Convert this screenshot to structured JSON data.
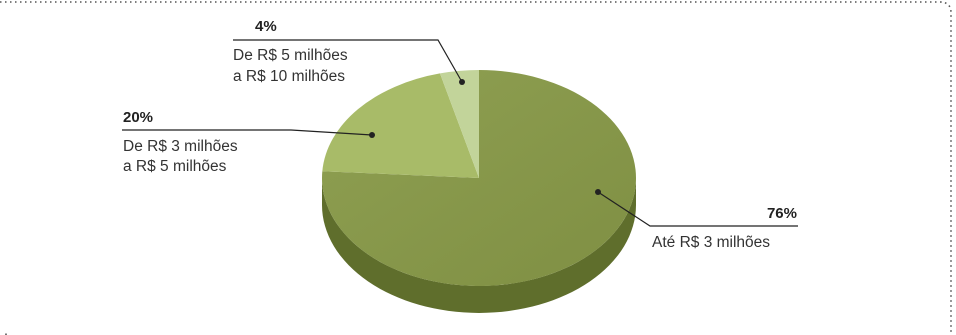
{
  "colors": {
    "border": "#555555",
    "leader": "#222222",
    "slice_dark": "#8a9a4e",
    "slice_dark_side": "#5f6e2c",
    "slice_mid": "#a8bb68",
    "slice_mid_side": "#7a8c3c",
    "slice_light": "#c2d49a",
    "slice_light_side": "#93a56a"
  },
  "chart_data": {
    "type": "pie",
    "slices": [
      {
        "label_lines": [
          "Até R$ 3 milhões"
        ],
        "percent_label": "76%",
        "value": 76
      },
      {
        "label_lines": [
          "De R$ 3 milhões",
          "a R$ 5 milhões"
        ],
        "percent_label": "20%",
        "value": 20
      },
      {
        "label_lines": [
          "De R$ 5 milhões",
          "a R$ 10 milhões"
        ],
        "percent_label": "4%",
        "value": 4
      }
    ]
  }
}
